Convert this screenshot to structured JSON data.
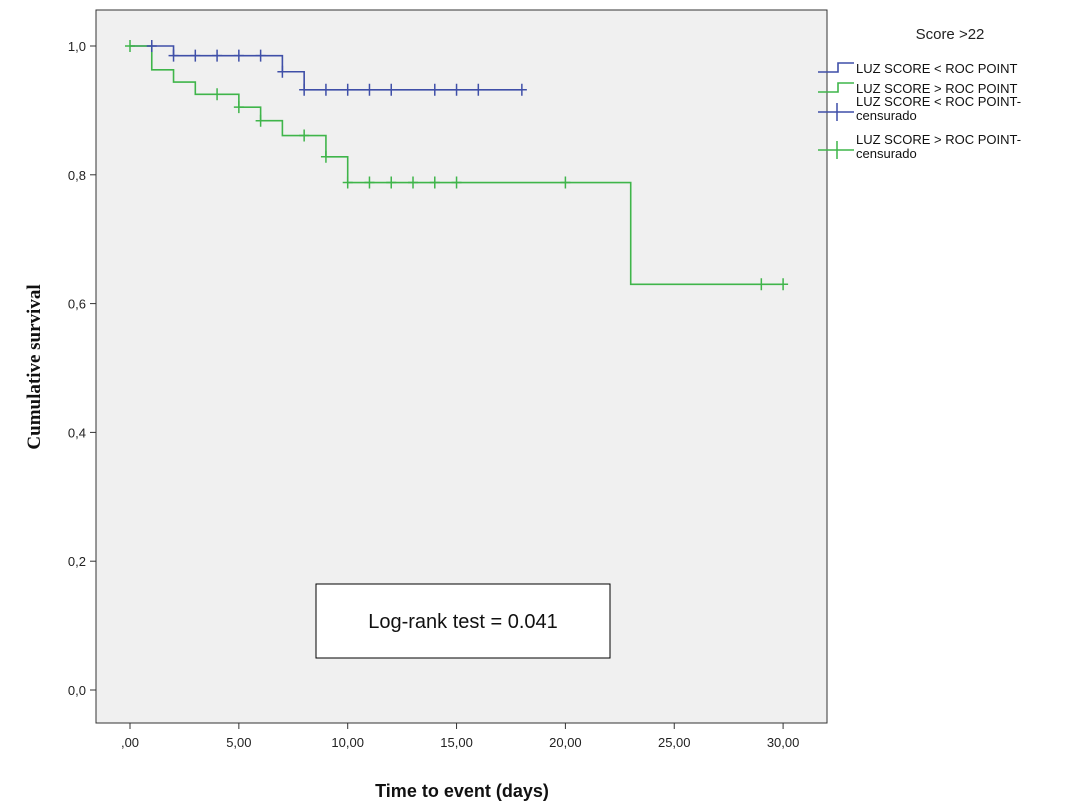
{
  "chart_data": {
    "type": "line",
    "subtype": "kaplan-meier step",
    "xlabel": "Time to event (days)",
    "ylabel": "Cumulative survival",
    "xlim": [
      -1.5,
      32
    ],
    "ylim": [
      -0.05,
      1.05
    ],
    "x_ticks": [
      0,
      5,
      10,
      15,
      20,
      25,
      30
    ],
    "x_tick_labels": [
      ",00",
      "5,00",
      "10,00",
      "15,00",
      "20,00",
      "25,00",
      "30,00"
    ],
    "y_ticks": [
      0,
      0.2,
      0.4,
      0.6,
      0.8,
      1.0
    ],
    "y_tick_labels": [
      "0,0",
      "0,2",
      "0,4",
      "0,6",
      "0,8",
      "1,0"
    ],
    "legend": {
      "title": "Score >22",
      "position": "right",
      "entries": [
        {
          "label": "LUZ SCORE < ROC POINT",
          "color": "#3F4FA8",
          "marker": "step"
        },
        {
          "label": "LUZ SCORE > ROC POINT",
          "color": "#3FB54A",
          "marker": "step"
        },
        {
          "label_lines": [
            "LUZ SCORE < ROC POINT-",
            "censurado"
          ],
          "color": "#3F4FA8",
          "marker": "plus"
        },
        {
          "label_lines": [
            "LUZ SCORE > ROC POINT-",
            "censurado"
          ],
          "color": "#3FB54A",
          "marker": "plus"
        }
      ]
    },
    "series": [
      {
        "name": "LUZ SCORE < ROC POINT",
        "color": "#3F4FA8",
        "steps": [
          [
            0,
            1.0
          ],
          [
            2,
            0.985
          ],
          [
            7,
            0.96
          ],
          [
            8,
            0.932
          ]
        ],
        "end_x": 18,
        "censored": [
          [
            1,
            1.0
          ],
          [
            2,
            0.985
          ],
          [
            3,
            0.985
          ],
          [
            4,
            0.985
          ],
          [
            5,
            0.985
          ],
          [
            6,
            0.985
          ],
          [
            7,
            0.96
          ],
          [
            8,
            0.932
          ],
          [
            9,
            0.932
          ],
          [
            10,
            0.932
          ],
          [
            11,
            0.932
          ],
          [
            12,
            0.932
          ],
          [
            14,
            0.932
          ],
          [
            15,
            0.932
          ],
          [
            16,
            0.932
          ],
          [
            18,
            0.932
          ]
        ]
      },
      {
        "name": "LUZ SCORE > ROC POINT",
        "color": "#3FB54A",
        "steps": [
          [
            0,
            1.0
          ],
          [
            1,
            0.963
          ],
          [
            2,
            0.944
          ],
          [
            3,
            0.925
          ],
          [
            5,
            0.905
          ],
          [
            6,
            0.884
          ],
          [
            7,
            0.861
          ],
          [
            9,
            0.828
          ],
          [
            10,
            0.788
          ],
          [
            23,
            0.63
          ]
        ],
        "end_x": 30,
        "censored": [
          [
            0,
            1.0
          ],
          [
            4,
            0.925
          ],
          [
            5,
            0.905
          ],
          [
            6,
            0.884
          ],
          [
            8,
            0.861
          ],
          [
            9,
            0.828
          ],
          [
            10,
            0.788
          ],
          [
            11,
            0.788
          ],
          [
            12,
            0.788
          ],
          [
            13,
            0.788
          ],
          [
            14,
            0.788
          ],
          [
            15,
            0.788
          ],
          [
            20,
            0.788
          ],
          [
            29,
            0.63
          ],
          [
            30,
            0.63
          ]
        ]
      }
    ],
    "annotation": {
      "text": "Log-rank test = 0.041"
    }
  },
  "colors": {
    "plot_background": "#F0F0F0",
    "axis": "#333333"
  }
}
